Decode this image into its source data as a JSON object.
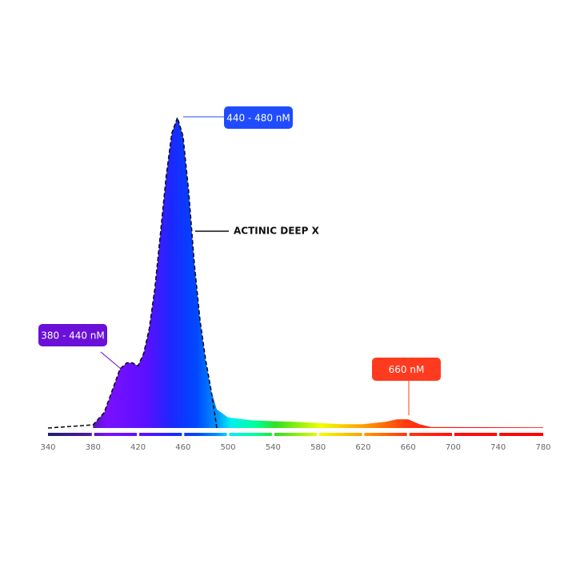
{
  "chart_data": {
    "type": "spectrum",
    "xlim": [
      340,
      780
    ],
    "ylim": [
      0,
      100
    ],
    "xticks": [
      340,
      380,
      420,
      460,
      500,
      540,
      580,
      620,
      660,
      700,
      740,
      780
    ],
    "series": [
      {
        "style": "gradient-area",
        "x": [
          380,
          390,
          404,
          410,
          415,
          420,
          425,
          430,
          435,
          440,
          445,
          450,
          455,
          460,
          465,
          470,
          475,
          480,
          485,
          490,
          500,
          520,
          540,
          560,
          600,
          620,
          640,
          650,
          660,
          670,
          680,
          780
        ],
        "values": [
          1,
          5,
          19,
          21,
          21,
          20,
          24,
          32,
          45,
          63,
          81,
          95,
          100,
          94,
          76,
          53,
          35,
          22,
          12,
          6,
          3.4,
          2.5,
          2.2,
          2,
          1.2,
          1.2,
          2,
          2.8,
          2.8,
          1.2,
          0.3,
          0.2
        ]
      },
      {
        "name": "ACTINIC DEEP X",
        "style": "dashed",
        "color": "#111111",
        "x": [
          340,
          380,
          390,
          404,
          410,
          415,
          420,
          425,
          430,
          435,
          440,
          445,
          450,
          455,
          460,
          465,
          470,
          475,
          480,
          485,
          490
        ],
        "values": [
          0,
          1,
          5,
          19,
          21,
          21,
          20,
          24,
          32,
          45,
          63,
          81,
          95,
          100,
          94,
          76,
          53,
          35,
          22,
          12,
          0
        ]
      }
    ],
    "annotations": [
      {
        "text": "440 - 480 nM",
        "color": "#1f4cff"
      },
      {
        "text": "380 - 440 nM",
        "color": "#6a10d8"
      },
      {
        "text": "660 nM",
        "color": "#ff3b1f"
      }
    ]
  }
}
